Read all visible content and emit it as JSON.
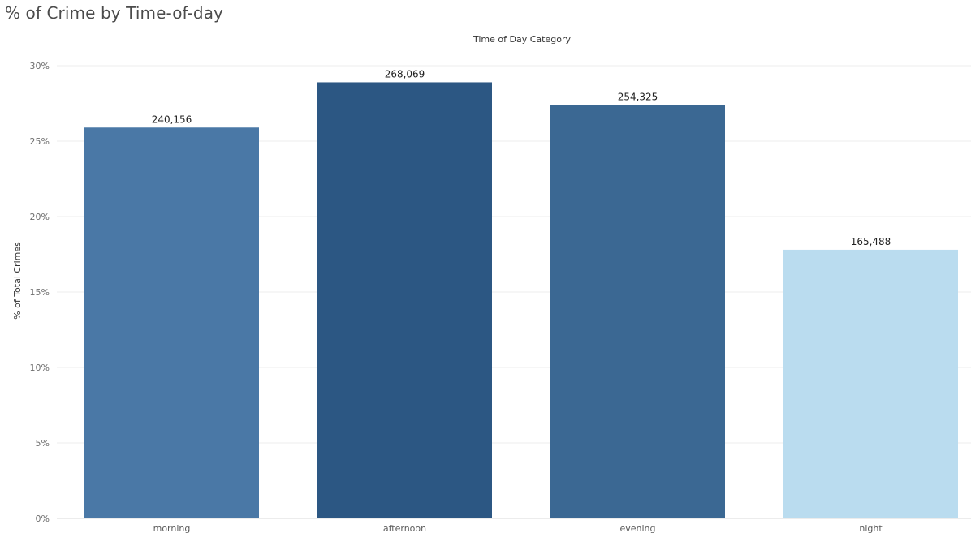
{
  "title": "% of Crime by Time-of-day",
  "chart_data": {
    "type": "bar",
    "title": "% of Crime by Time-of-day",
    "xlabel": "Time of Day Category",
    "ylabel": "% of Total Crimes",
    "categories": [
      "morning",
      "afternoon",
      "evening",
      "night"
    ],
    "values": [
      25.9,
      28.9,
      27.4,
      17.8
    ],
    "data_labels": [
      "240,156",
      "268,069",
      "254,325",
      "165,488"
    ],
    "colors": [
      "#4a78a6",
      "#2c5783",
      "#3b6893",
      "#badcef"
    ],
    "ylim": [
      0,
      30
    ],
    "yticks": [
      0,
      5,
      10,
      15,
      20,
      25,
      30
    ],
    "ytick_labels": [
      "0%",
      "5%",
      "10%",
      "15%",
      "20%",
      "25%",
      "30%"
    ],
    "grid": true,
    "legend": "none"
  }
}
